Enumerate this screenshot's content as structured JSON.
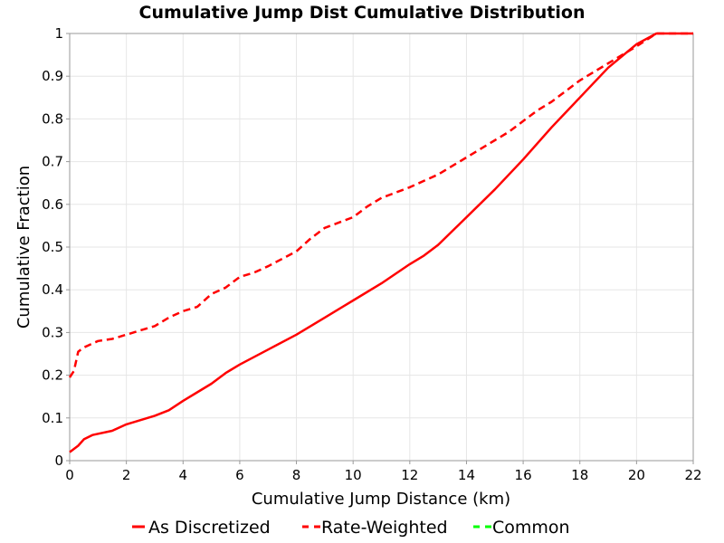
{
  "chart_data": {
    "type": "line",
    "title": "Cumulative Jump Dist Cumulative Distribution",
    "xlabel": "Cumulative Jump Distance (km)",
    "ylabel": "Cumulative Fraction",
    "xlim": [
      0,
      22
    ],
    "ylim": [
      0,
      1
    ],
    "x_ticks": [
      0,
      2,
      4,
      6,
      8,
      10,
      12,
      14,
      16,
      18,
      20,
      22
    ],
    "y_ticks": [
      0,
      0.1,
      0.2,
      0.3,
      0.4,
      0.5,
      0.6,
      0.7,
      0.8,
      0.9,
      1
    ],
    "y_tick_labels": [
      "0",
      "0.1",
      "0.2",
      "0.3",
      "0.4",
      "0.5",
      "0.6",
      "0.7",
      "0.8",
      "0.9",
      "1"
    ],
    "grid": true,
    "legend_position": "bottom",
    "series": [
      {
        "name": "As Discretized",
        "color": "#ff0000",
        "dash": "solid",
        "x": [
          0,
          0.3,
          0.5,
          0.8,
          1.5,
          2.0,
          2.5,
          3.0,
          3.5,
          4.0,
          4.5,
          5.0,
          5.5,
          6.0,
          7.0,
          8.0,
          9.0,
          10.0,
          11.0,
          12.0,
          12.5,
          13.0,
          14.0,
          15.0,
          16.0,
          17.0,
          18.0,
          19.0,
          20.0,
          20.7,
          21.0,
          22.0
        ],
        "y": [
          0.02,
          0.035,
          0.05,
          0.06,
          0.07,
          0.085,
          0.095,
          0.105,
          0.118,
          0.14,
          0.16,
          0.18,
          0.205,
          0.225,
          0.26,
          0.295,
          0.335,
          0.375,
          0.415,
          0.46,
          0.48,
          0.505,
          0.57,
          0.635,
          0.705,
          0.78,
          0.85,
          0.92,
          0.975,
          1.0,
          1.0,
          1.0
        ]
      },
      {
        "name": "Rate-Weighted",
        "color": "#ff0000",
        "dash": "dashed",
        "x": [
          0,
          0.15,
          0.3,
          0.5,
          1.0,
          1.5,
          2.0,
          2.5,
          3.0,
          3.5,
          4.0,
          4.5,
          5.0,
          5.5,
          6.0,
          6.5,
          7.0,
          8.0,
          8.5,
          9.0,
          10.0,
          10.5,
          11.0,
          12.0,
          13.0,
          14.0,
          15.0,
          15.5,
          16.0,
          16.5,
          17.0,
          18.0,
          19.0,
          20.0,
          20.7,
          21.0,
          22.0
        ],
        "y": [
          0.195,
          0.21,
          0.255,
          0.265,
          0.28,
          0.285,
          0.295,
          0.305,
          0.315,
          0.335,
          0.35,
          0.36,
          0.39,
          0.405,
          0.43,
          0.44,
          0.455,
          0.49,
          0.52,
          0.545,
          0.57,
          0.595,
          0.615,
          0.64,
          0.67,
          0.71,
          0.75,
          0.77,
          0.795,
          0.82,
          0.84,
          0.89,
          0.93,
          0.97,
          1.0,
          1.0,
          1.0
        ]
      },
      {
        "name": "Common",
        "color": "#00ff00",
        "dash": "dashed",
        "x": [],
        "y": []
      }
    ]
  }
}
